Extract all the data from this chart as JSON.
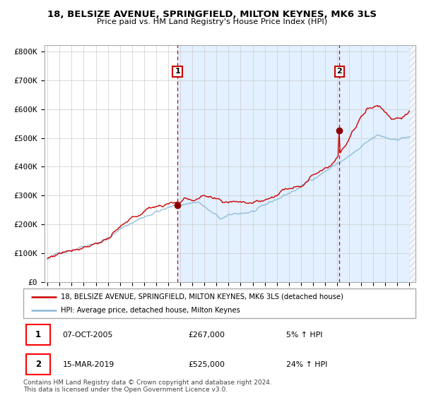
{
  "title_line1": "18, BELSIZE AVENUE, SPRINGFIELD, MILTON KEYNES, MK6 3LS",
  "title_line2": "Price paid vs. HM Land Registry's House Price Index (HPI)",
  "ylabel_ticks": [
    "£0",
    "£100K",
    "£200K",
    "£300K",
    "£400K",
    "£500K",
    "£600K",
    "£700K",
    "£800K"
  ],
  "ytick_vals": [
    0,
    100000,
    200000,
    300000,
    400000,
    500000,
    600000,
    700000,
    800000
  ],
  "ylim": [
    0,
    820000
  ],
  "xlim_start": 1994.75,
  "xlim_end": 2025.5,
  "sale1_date": "07-OCT-2005",
  "sale1_price": 267000,
  "sale1_label": "1",
  "sale1_year": 2005.77,
  "sale2_date": "15-MAR-2019",
  "sale2_price": 525000,
  "sale2_label": "2",
  "sale2_year": 2019.2,
  "legend_line1": "18, BELSIZE AVENUE, SPRINGFIELD, MILTON KEYNES, MK6 3LS (detached house)",
  "legend_line2": "HPI: Average price, detached house, Milton Keynes",
  "footnote": "Contains HM Land Registry data © Crown copyright and database right 2024.\nThis data is licensed under the Open Government Licence v3.0.",
  "hpi_color": "#89b8d8",
  "price_color": "#cc0000",
  "marker_color": "#8b0000",
  "bg_shade_color": "#ddeeff",
  "grid_color": "#cccccc",
  "diagonal_color": "#cccccc"
}
